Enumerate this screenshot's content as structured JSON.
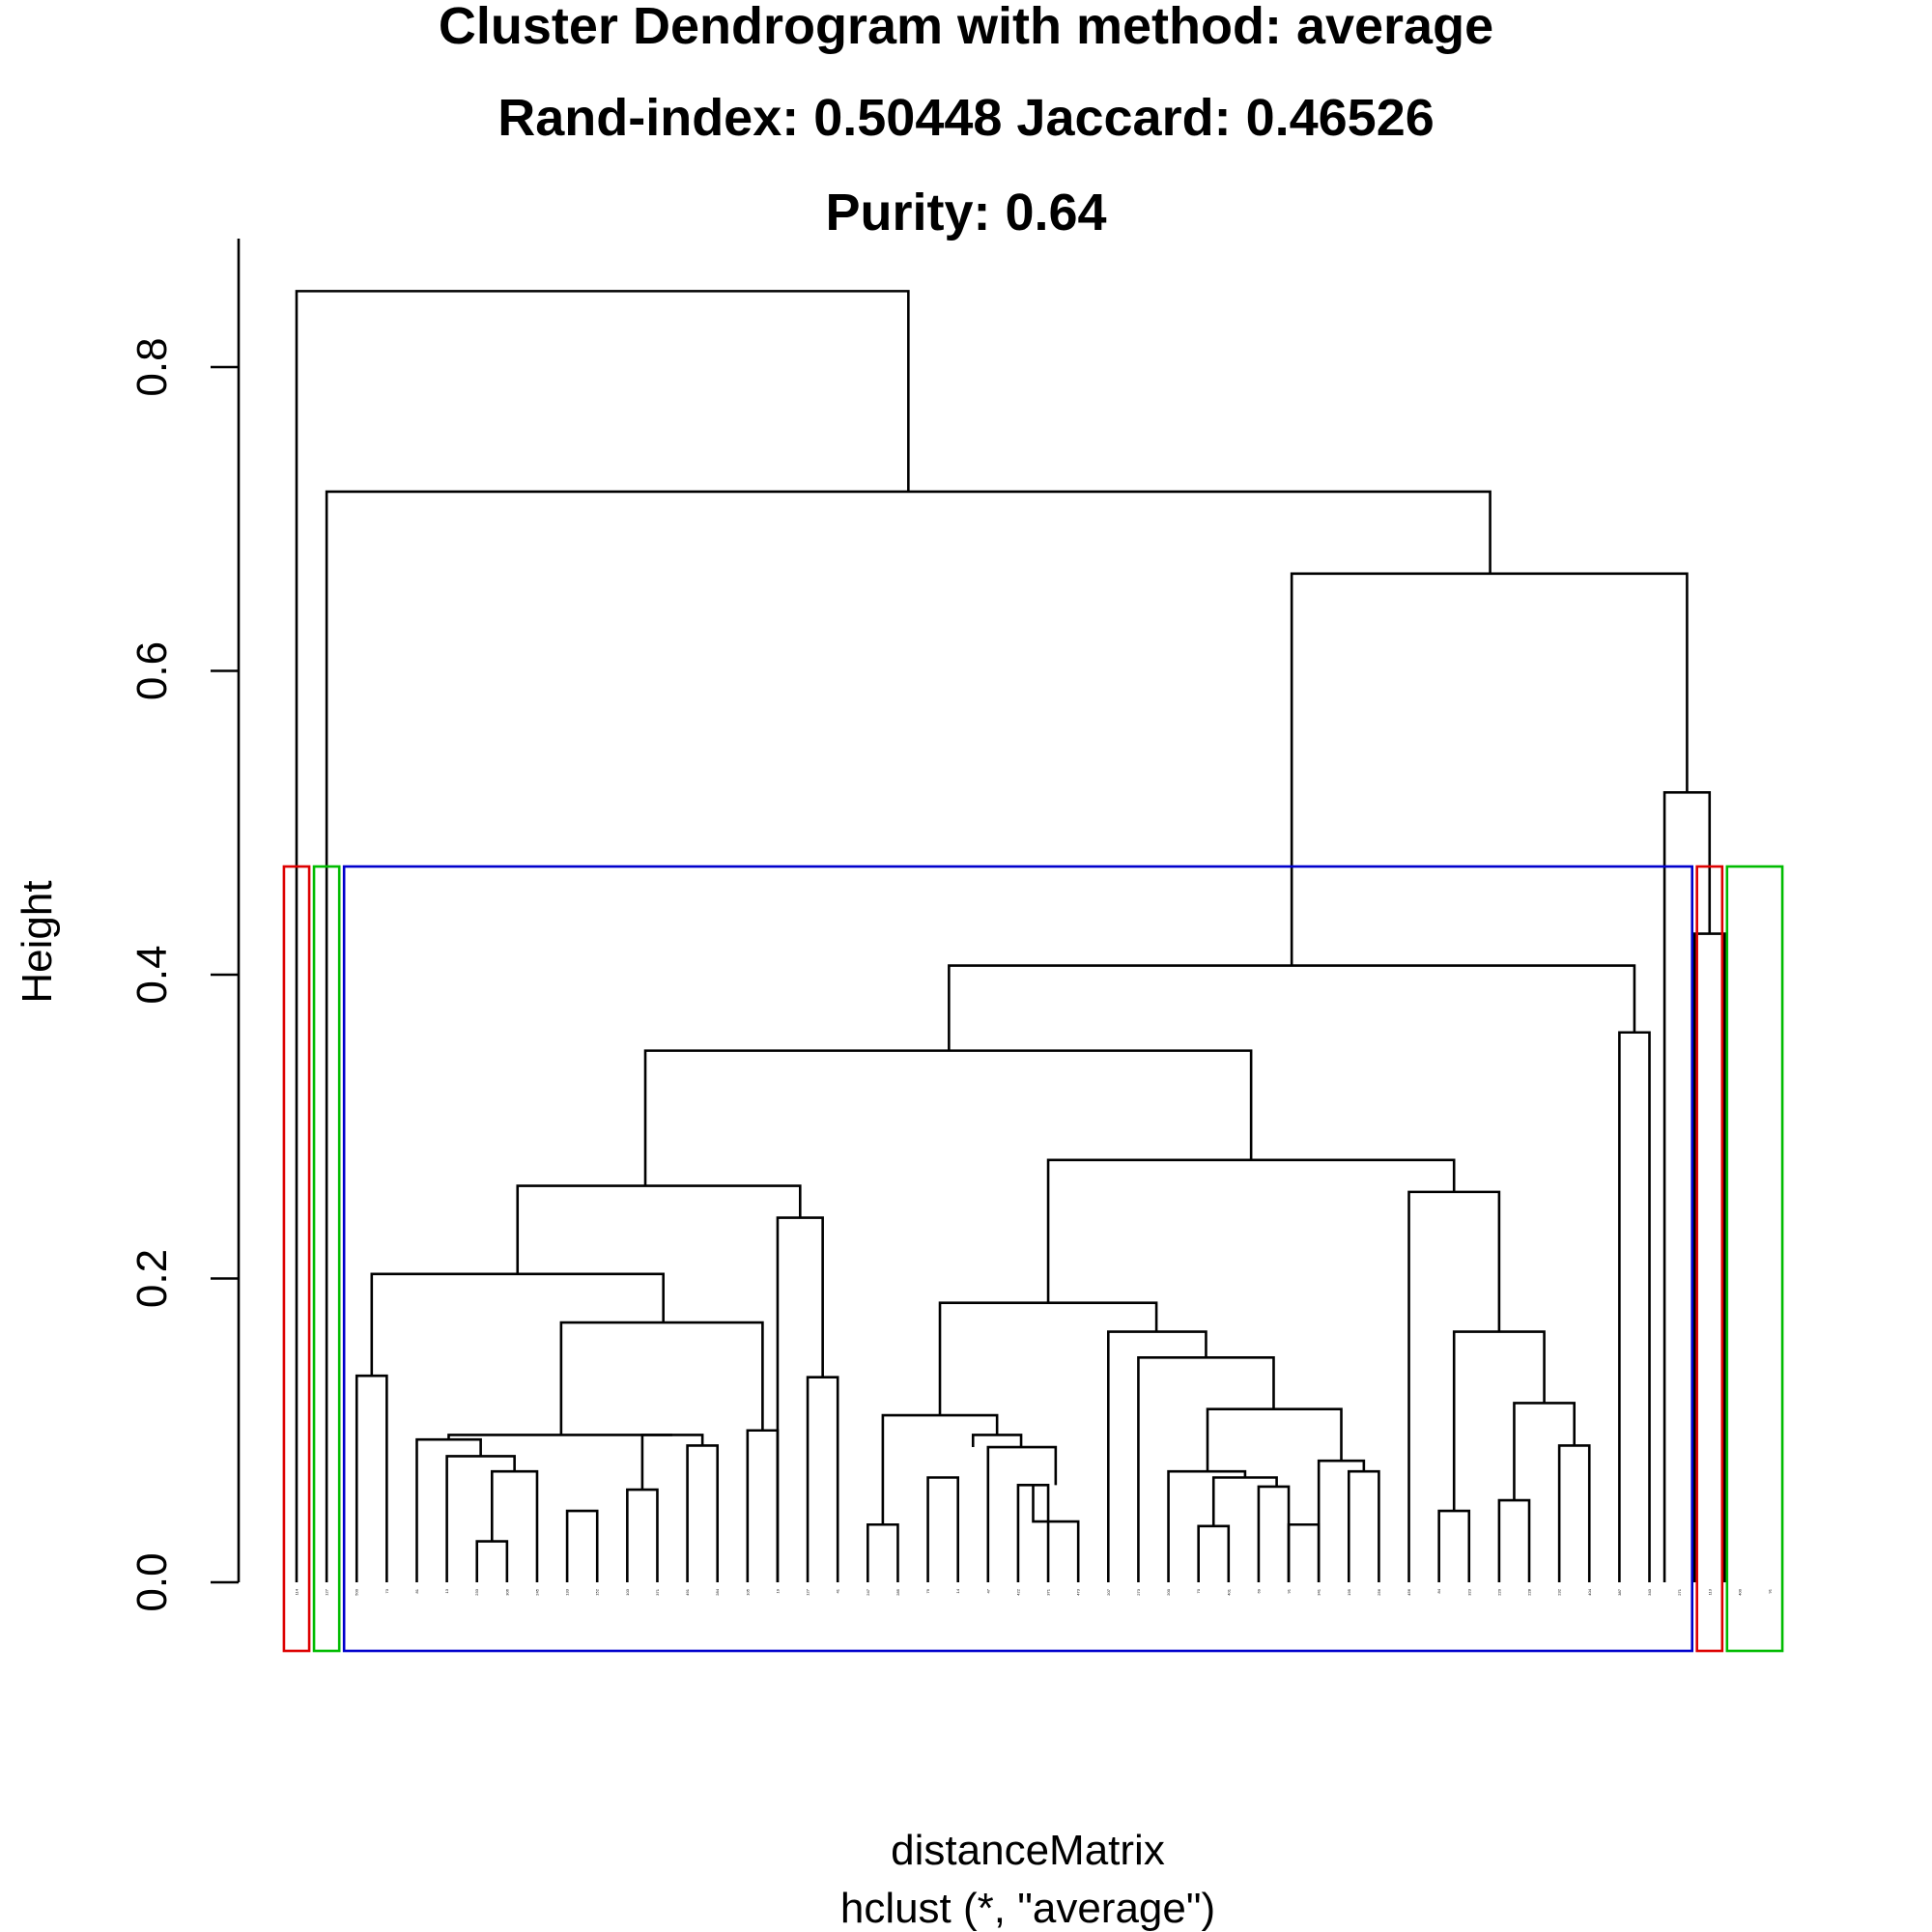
{
  "title_lines": [
    "Cluster Dendrogram with method: average",
    "Rand-index: 0.50448  Jaccard: 0.46526",
    "Purity: 0.64"
  ],
  "chart_data": {
    "type": "dendrogram",
    "method": "average",
    "xlabel": "distanceMatrix",
    "sublabel": "hclust (*, \"average\")",
    "ylabel": "Height",
    "ylim": [
      0,
      0.86
    ],
    "yticks": [
      0.0,
      0.2,
      0.4,
      0.6,
      0.8
    ],
    "leaf_count": 50,
    "leaves": [
      "114",
      "127",
      "500",
      "73",
      "81",
      "13",
      "233",
      "306",
      "245",
      "133",
      "152",
      "103",
      "371",
      "491",
      "284",
      "105",
      "19",
      "127",
      "41",
      "247",
      "285",
      "79",
      "14",
      "47",
      "422",
      "371",
      "473",
      "207",
      "273",
      "200",
      "70",
      "401",
      "69",
      "91",
      "341",
      "195",
      "256",
      "456",
      "84",
      "323",
      "220",
      "228",
      "232",
      "404",
      "387",
      "343",
      "271",
      "113",
      "400",
      "91"
    ],
    "merges": [
      {
        "h": 0.85,
        "children_x_leaf": [
          1,
          22.5
        ]
      },
      {
        "h": 0.718,
        "children_x_leaf": [
          2,
          42.0
        ]
      },
      {
        "h": 0.664,
        "children_x_leaf": [
          28.3,
          49.0
        ]
      },
      {
        "h": 0.52,
        "children_x_leaf": [
          48,
          49.5
        ]
      },
      {
        "h": 0.427,
        "children_x_leaf": [
          49,
          50
        ]
      },
      {
        "h": 0.406,
        "children_x_leaf": [
          14.3,
          47.5
        ]
      },
      {
        "h": 0.362,
        "children_x_leaf": [
          47,
          48
        ]
      },
      {
        "h": 0.35,
        "children_x_leaf": [
          9.2,
          34.0
        ]
      },
      {
        "h": 0.278,
        "children_x_leaf": [
          21.3,
          43.3
        ]
      },
      {
        "h": 0.261,
        "children_x_leaf": [
          6.7,
          16.3
        ]
      },
      {
        "h": 0.257,
        "children_x_leaf": [
          40,
          46.7
        ]
      },
      {
        "h": 0.24,
        "children_x_leaf": [
          17,
          18.5
        ]
      },
      {
        "h": 0.203,
        "children_x_leaf": [
          3.5,
          12.3
        ]
      }
    ],
    "cluster_boxes": [
      {
        "color": "#dd0000",
        "from_leaf": 1,
        "to_leaf": 1
      },
      {
        "color": "#00bb00",
        "from_leaf": 2,
        "to_leaf": 2
      },
      {
        "color": "#0000cc",
        "from_leaf": 3,
        "to_leaf": 47
      },
      {
        "color": "#dd0000",
        "from_leaf": 48,
        "to_leaf": 48
      },
      {
        "color": "#00bb00",
        "from_leaf": 49,
        "to_leaf": 50
      }
    ]
  }
}
